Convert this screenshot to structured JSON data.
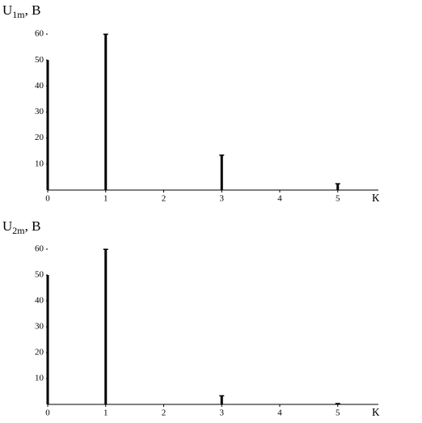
{
  "chart_data": [
    {
      "type": "stem",
      "ylabel": "U",
      "ylabel_sub": "1m",
      "ylabel_suffix": ", В",
      "xlabel": "К",
      "x": [
        0,
        1,
        3,
        5
      ],
      "values": [
        50,
        60,
        13.5,
        2.5
      ],
      "color": "#000000",
      "xlim": [
        0,
        5.7
      ],
      "xticks": [
        0,
        1,
        2,
        3,
        4,
        5
      ],
      "ylim": [
        0,
        65
      ],
      "yticks": [
        10,
        20,
        30,
        40,
        50,
        60
      ]
    },
    {
      "type": "stem",
      "ylabel": "U",
      "ylabel_sub": "2m",
      "ylabel_suffix": ", В",
      "xlabel": "К",
      "x": [
        0,
        1,
        3,
        5
      ],
      "values": [
        50,
        60,
        3.4,
        0.4
      ],
      "color": "#000000",
      "xlim": [
        0,
        5.7
      ],
      "xticks": [
        0,
        1,
        2,
        3,
        4,
        5
      ],
      "ylim": [
        0,
        65
      ],
      "yticks": [
        10,
        20,
        30,
        40,
        50,
        60
      ]
    }
  ]
}
